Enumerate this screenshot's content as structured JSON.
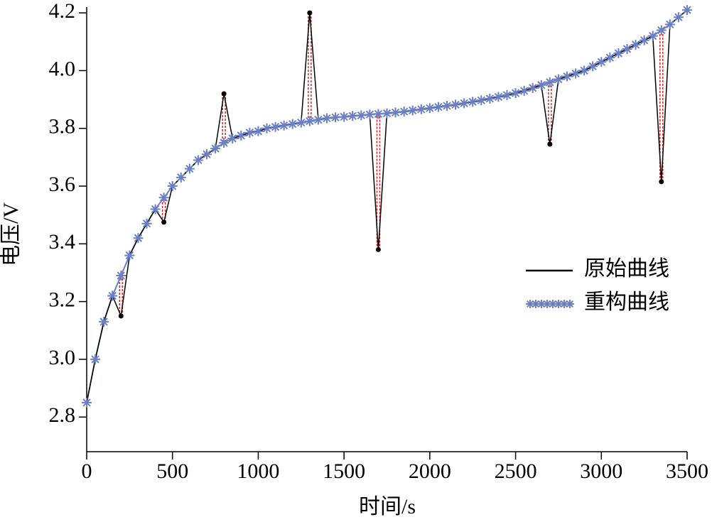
{
  "chart_data": {
    "type": "line",
    "xlabel": "时间/s",
    "ylabel": "电压/V",
    "x": [
      0,
      50,
      100,
      150,
      200,
      250,
      300,
      350,
      400,
      450,
      500,
      550,
      600,
      650,
      700,
      750,
      800,
      850,
      900,
      950,
      1000,
      1050,
      1100,
      1150,
      1200,
      1250,
      1300,
      1350,
      1400,
      1450,
      1500,
      1550,
      1600,
      1650,
      1700,
      1750,
      1800,
      1850,
      1900,
      1950,
      2000,
      2050,
      2100,
      2150,
      2200,
      2250,
      2300,
      2350,
      2400,
      2450,
      2500,
      2550,
      2600,
      2650,
      2700,
      2750,
      2800,
      2850,
      2900,
      2950,
      3000,
      3050,
      3100,
      3150,
      3200,
      3250,
      3300,
      3350,
      3400,
      3450,
      3500
    ],
    "series": [
      {
        "name": "原始曲线",
        "color": "#000000",
        "values": [
          2.85,
          3.0,
          3.13,
          3.22,
          3.15,
          3.36,
          3.42,
          3.47,
          3.52,
          3.475,
          3.6,
          3.63,
          3.66,
          3.69,
          3.71,
          3.73,
          3.92,
          3.765,
          3.775,
          3.785,
          3.79,
          3.8,
          3.805,
          3.81,
          3.815,
          3.82,
          4.2,
          3.83,
          3.835,
          3.838,
          3.84,
          3.843,
          3.845,
          3.848,
          3.38,
          3.852,
          3.855,
          3.858,
          3.862,
          3.866,
          3.87,
          3.874,
          3.878,
          3.882,
          3.887,
          3.892,
          3.897,
          3.903,
          3.909,
          3.915,
          3.922,
          3.93,
          3.94,
          3.95,
          3.745,
          3.97,
          3.98,
          3.99,
          4.0,
          4.015,
          4.03,
          4.045,
          4.06,
          4.075,
          4.09,
          4.105,
          4.12,
          3.615,
          4.16,
          4.185,
          4.21
        ]
      },
      {
        "name": "重构曲线",
        "color": "#6b7fc4",
        "values": [
          2.85,
          3.0,
          3.13,
          3.22,
          3.29,
          3.36,
          3.42,
          3.47,
          3.52,
          3.56,
          3.6,
          3.63,
          3.66,
          3.69,
          3.71,
          3.73,
          3.75,
          3.765,
          3.775,
          3.785,
          3.79,
          3.8,
          3.805,
          3.81,
          3.815,
          3.82,
          3.825,
          3.83,
          3.835,
          3.838,
          3.84,
          3.843,
          3.845,
          3.848,
          3.85,
          3.852,
          3.855,
          3.858,
          3.862,
          3.866,
          3.87,
          3.874,
          3.878,
          3.882,
          3.887,
          3.892,
          3.897,
          3.903,
          3.909,
          3.915,
          3.922,
          3.93,
          3.94,
          3.95,
          3.96,
          3.97,
          3.98,
          3.99,
          4.0,
          4.015,
          4.03,
          4.045,
          4.06,
          4.075,
          4.09,
          4.105,
          4.12,
          4.14,
          4.16,
          4.185,
          4.21
        ]
      }
    ],
    "difference_color": "#d62020",
    "xlim": [
      0,
      3500
    ],
    "xticks": [
      0,
      500,
      1000,
      1500,
      2000,
      2500,
      3000,
      3500
    ],
    "ylim": [
      2.68,
      4.22
    ],
    "yticks": [
      2.8,
      {
        "value": 3,
        "label": "3.0"
      },
      3.2,
      3.4,
      3.6,
      3.8,
      {
        "value": 4,
        "label": "4.0"
      },
      4.2
    ]
  }
}
